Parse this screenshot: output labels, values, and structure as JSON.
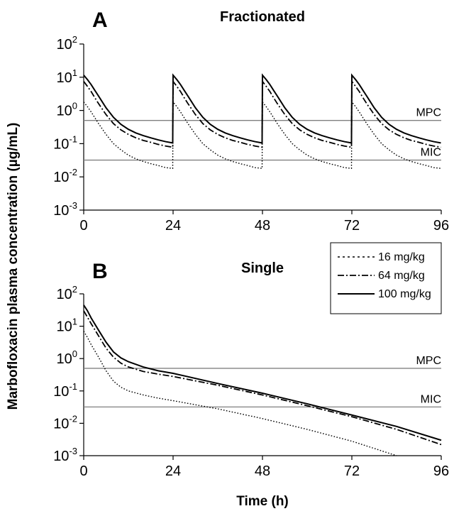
{
  "chart_data": {
    "type": "line",
    "y_axis_label": "Marbofloxacin plasma concentration (µg/mL)",
    "x_axis_label": "Time (h)",
    "y_scale": "log",
    "x_ticks": [
      "0",
      "24",
      "48",
      "72",
      "96"
    ],
    "y_tick_base": "10",
    "y_tick_exponents": [
      "2",
      "1",
      "0",
      "-1",
      "-2",
      "-3"
    ],
    "legend": {
      "placement": "upper-right of panel B",
      "entries": [
        {
          "label": "16 mg/kg",
          "style": "dotted"
        },
        {
          "label": "64 mg/kg",
          "style": "dash-dot"
        },
        {
          "label": "100 mg/kg",
          "style": "solid"
        }
      ]
    },
    "panels": [
      {
        "letter": "A",
        "title": "Fractionated",
        "xlim": [
          0,
          96
        ],
        "ylim": [
          0.001,
          100
        ],
        "dosing_interval_h": 24,
        "reference_lines": [
          {
            "label": "MPC",
            "value": 0.5
          },
          {
            "label": "MIC",
            "value": 0.032
          }
        ],
        "series": [
          {
            "name": "16 mg/kg",
            "style": "dotted",
            "x": [
              0,
              1,
              2,
              3,
              4,
              6,
              8,
              10,
              12,
              14,
              16,
              18,
              20,
              22,
              23.9
            ],
            "y": [
              1.8,
              1.3,
              0.9,
              0.6,
              0.4,
              0.19,
              0.1,
              0.065,
              0.045,
              0.035,
              0.029,
              0.025,
              0.022,
              0.019,
              0.018
            ]
          },
          {
            "name": "64 mg/kg",
            "style": "dash-dot",
            "x": [
              0,
              1,
              2,
              3,
              4,
              6,
              8,
              10,
              12,
              14,
              16,
              18,
              20,
              22,
              23.9
            ],
            "y": [
              7.5,
              5.3,
              3.7,
              2.4,
              1.6,
              0.75,
              0.4,
              0.26,
              0.19,
              0.15,
              0.125,
              0.11,
              0.095,
              0.085,
              0.078
            ]
          },
          {
            "name": "100 mg/kg",
            "style": "solid",
            "x": [
              0,
              1,
              2,
              3,
              4,
              6,
              8,
              10,
              12,
              14,
              16,
              18,
              20,
              22,
              23.9
            ],
            "y": [
              11.5,
              8.5,
              6,
              4,
              2.7,
              1.2,
              0.62,
              0.38,
              0.27,
              0.21,
              0.175,
              0.15,
              0.13,
              0.115,
              0.105
            ]
          }
        ]
      },
      {
        "letter": "B",
        "title": "Single",
        "xlim": [
          0,
          96
        ],
        "ylim": [
          0.001,
          100
        ],
        "reference_lines": [
          {
            "label": "MPC",
            "value": 0.5
          },
          {
            "label": "MIC",
            "value": 0.032
          }
        ],
        "series": [
          {
            "name": "16 mg/kg",
            "style": "dotted",
            "x": [
              0,
              1,
              2,
              4,
              6,
              8,
              10,
              12,
              16,
              20,
              24,
              36,
              48,
              60,
              72,
              84
            ],
            "y": [
              7,
              4.5,
              2.7,
              1.1,
              0.42,
              0.2,
              0.13,
              0.1,
              0.075,
              0.06,
              0.05,
              0.028,
              0.014,
              0.0065,
              0.0028,
              0.001
            ]
          },
          {
            "name": "64 mg/kg",
            "style": "dash-dot",
            "x": [
              0,
              1,
              2,
              4,
              6,
              8,
              10,
              12,
              16,
              20,
              24,
              36,
              48,
              60,
              72,
              84,
              96
            ],
            "y": [
              30,
              19,
              12,
              5,
              2.1,
              1.1,
              0.72,
              0.55,
              0.4,
              0.33,
              0.28,
              0.15,
              0.075,
              0.035,
              0.016,
              0.0065,
              0.0022
            ]
          },
          {
            "name": "100 mg/kg",
            "style": "solid",
            "x": [
              0,
              1,
              2,
              4,
              6,
              8,
              10,
              12,
              16,
              20,
              24,
              36,
              48,
              60,
              72,
              84,
              96
            ],
            "y": [
              45,
              30,
              18,
              7.5,
              3.2,
              1.6,
              1.05,
              0.8,
              0.55,
              0.42,
              0.35,
              0.17,
              0.085,
              0.04,
              0.018,
              0.008,
              0.003
            ]
          }
        ]
      }
    ]
  }
}
